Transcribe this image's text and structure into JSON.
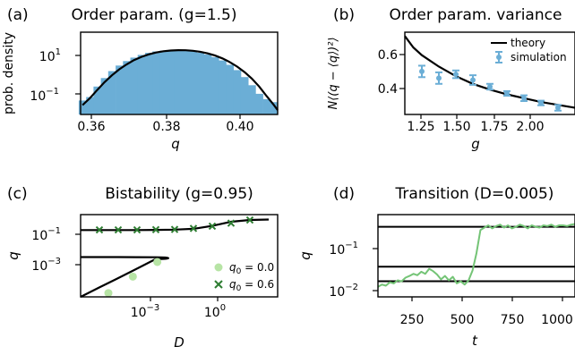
{
  "colors": {
    "hist": "#6baed6",
    "sim": "#6baed6",
    "theory": "#000000",
    "marker_q0_0": "#b7e4a5",
    "marker_q0_06": "#2e7d32",
    "trace": "#74c476"
  },
  "chart_data": [
    {
      "panel": "(a)",
      "type": "bar",
      "title": "Order param. (g=1.5)",
      "xlabel": "q",
      "ylabel": "prob. density",
      "yscale": "log",
      "xlim": [
        0.357,
        0.4105
      ],
      "ylim": [
        0.012,
        160
      ],
      "xticks": [
        "0.36",
        "0.38",
        "0.40"
      ],
      "yticks": [
        "10^1",
        "10^-1"
      ],
      "grid": false,
      "bins_x": [
        0.3575,
        0.3595,
        0.3615,
        0.3635,
        0.3655,
        0.3675,
        0.3695,
        0.3715,
        0.3735,
        0.3755,
        0.3775,
        0.3795,
        0.3815,
        0.3835,
        0.3855,
        0.3875,
        0.3895,
        0.3915,
        0.3935,
        0.3955,
        0.3975,
        0.3995,
        0.4015,
        0.4035,
        0.4055,
        0.4075,
        0.4095
      ],
      "bins_density": [
        0.06,
        0.09,
        0.3,
        0.8,
        1.8,
        3.4,
        5.7,
        8.5,
        11.6,
        14.7,
        17.3,
        19.1,
        20.1,
        20.2,
        19.4,
        17.6,
        15.1,
        12.1,
        9.0,
        6.1,
        3.7,
        2.0,
        0.9,
        0.35,
        0.13,
        0.07,
        0.05
      ],
      "theory_x": [
        0.3575,
        0.3595,
        0.3615,
        0.3635,
        0.3655,
        0.3675,
        0.3695,
        0.3715,
        0.3735,
        0.3755,
        0.3775,
        0.3795,
        0.3815,
        0.3835,
        0.3855,
        0.3875,
        0.3895,
        0.3915,
        0.3935,
        0.3955,
        0.3975,
        0.3995,
        0.4015,
        0.4035,
        0.4055,
        0.4075,
        0.4095,
        0.4105
      ],
      "theory_y": [
        0.035,
        0.078,
        0.2,
        0.5,
        1.1,
        2.2,
        3.9,
        6.4,
        9.3,
        12.4,
        15.3,
        17.7,
        19.3,
        20.0,
        19.8,
        18.7,
        16.7,
        13.9,
        10.8,
        7.8,
        5.1,
        3.0,
        1.6,
        0.75,
        0.3,
        0.1,
        0.035,
        0.02
      ]
    },
    {
      "panel": "(b)",
      "type": "line",
      "title": "Order param. variance",
      "xlabel": "g",
      "ylabel": "N⟨(q − ⟨q⟩)²⟩",
      "xlim": [
        1.1,
        2.1
      ],
      "ylim": [
        0.25,
        0.68
      ],
      "xticks": [
        "1.25",
        "1.50",
        "1.75",
        "2.00"
      ],
      "yticks": [
        "0.4",
        "0.6"
      ],
      "legend": "top-right",
      "grid": false,
      "series": [
        {
          "name": "theory",
          "x": [
            1.1,
            1.15,
            1.2,
            1.3,
            1.4,
            1.5,
            1.6,
            1.7,
            1.8,
            1.9,
            2.0,
            2.1
          ],
          "y": [
            0.66,
            0.6,
            0.56,
            0.5,
            0.45,
            0.41,
            0.38,
            0.355,
            0.335,
            0.315,
            0.3,
            0.285
          ]
        },
        {
          "name": "simulation",
          "x": [
            1.2,
            1.3,
            1.4,
            1.5,
            1.6,
            1.7,
            1.8,
            1.9,
            2.0
          ],
          "y": [
            0.475,
            0.44,
            0.46,
            0.43,
            0.395,
            0.36,
            0.335,
            0.31,
            0.285
          ],
          "err": [
            0.03,
            0.03,
            0.02,
            0.025,
            0.015,
            0.012,
            0.015,
            0.012,
            0.015
          ]
        }
      ]
    },
    {
      "panel": "(c)",
      "type": "line",
      "title": "Bistability (g=0.95)",
      "xlabel": "D",
      "ylabel": "q",
      "xscale": "log",
      "yscale": "log",
      "xlim": [
        1e-07,
        3000
      ],
      "ylim": [
        5e-05,
        1.2
      ],
      "xticks": [
        "10^-3",
        "10^0"
      ],
      "yticks": [
        "10^-1",
        "10^-3"
      ],
      "legend": "lower-right",
      "grid": false,
      "theory_x": [
        1e-07,
        1e-06,
        1e-05,
        0.0001,
        0.001,
        0.01,
        0.1,
        1,
        10,
        100,
        1000
      ],
      "theory_upper": [
        0.18,
        0.18,
        0.18,
        0.181,
        0.185,
        0.19,
        0.21,
        0.3,
        0.5,
        0.62,
        0.66
      ],
      "theory_middle": [
        0.0066,
        0.0066,
        0.0066,
        0.0065,
        0.0064
      ],
      "theory_lower": [
        5e-05,
        0.00016,
        0.0005,
        0.0016,
        0.0052
      ],
      "series": [
        {
          "name": "q_0 = 0.0",
          "x": [
            3e-06,
            6e-05,
            0.0012
          ],
          "y": [
            8e-05,
            0.0006,
            0.0036
          ]
        },
        {
          "name": "q_0 = 0.6",
          "x": [
            1e-06,
            1e-05,
            0.0001,
            0.001,
            0.01,
            0.1,
            1,
            10,
            100
          ],
          "y": [
            0.185,
            0.185,
            0.185,
            0.19,
            0.195,
            0.22,
            0.29,
            0.42,
            0.62
          ]
        }
      ]
    },
    {
      "panel": "(d)",
      "type": "line",
      "title": "Transition (D=0.005)",
      "xlabel": "t",
      "ylabel": "q",
      "yscale": "log",
      "xlim": [
        100,
        1100
      ],
      "ylim": [
        0.01,
        0.5
      ],
      "xticks": [
        "250",
        "500",
        "750",
        "1000"
      ],
      "yticks": [
        "10^-1",
        "10^-2"
      ],
      "grid": false,
      "hlines": [
        0.28,
        0.042,
        0.021
      ],
      "trace_t": [
        100,
        120,
        140,
        160,
        180,
        200,
        220,
        240,
        260,
        280,
        300,
        320,
        340,
        360,
        380,
        400,
        420,
        440,
        460,
        480,
        500,
        520,
        540,
        560,
        580,
        600,
        620,
        640,
        660,
        680,
        700,
        720,
        740,
        760,
        780,
        800,
        820,
        840,
        860,
        880,
        900,
        920,
        940,
        960,
        980,
        1000,
        1020,
        1040,
        1060,
        1080,
        1100
      ],
      "trace_q": [
        0.016,
        0.018,
        0.017,
        0.02,
        0.019,
        0.022,
        0.021,
        0.025,
        0.027,
        0.03,
        0.028,
        0.033,
        0.03,
        0.038,
        0.034,
        0.029,
        0.023,
        0.027,
        0.022,
        0.026,
        0.019,
        0.021,
        0.018,
        0.022,
        0.035,
        0.08,
        0.24,
        0.27,
        0.3,
        0.26,
        0.29,
        0.31,
        0.27,
        0.3,
        0.26,
        0.28,
        0.31,
        0.29,
        0.26,
        0.3,
        0.28,
        0.27,
        0.3,
        0.29,
        0.31,
        0.28,
        0.3,
        0.3,
        0.29,
        0.31,
        0.32
      ]
    }
  ],
  "labels": {
    "a": {
      "panel": "(a)",
      "title": "Order param. (g=1.5)",
      "xlabel": "q",
      "ylabel": "prob. density",
      "xtick_0": "0.36",
      "xtick_1": "0.38",
      "xtick_2": "0.40",
      "ytick_base": "10",
      "ytick_0_exp": "1",
      "ytick_1_exp": "−1"
    },
    "b": {
      "panel": "(b)",
      "title": "Order param. variance",
      "xlabel": "g",
      "ylabel": "N⟨(q − ⟨q⟩)²⟩",
      "xtick_0": "1.25",
      "xtick_1": "1.50",
      "xtick_2": "1.75",
      "xtick_3": "2.00",
      "ytick_0": "0.6",
      "ytick_1": "0.4",
      "legend_theory": "theory",
      "legend_sim": "simulation"
    },
    "c": {
      "panel": "(c)",
      "title": "Bistability (g=0.95)",
      "xlabel": "D",
      "ylabel": "q",
      "ytick_base": "10",
      "ytick_0_exp": "−1",
      "ytick_1_exp": "−3",
      "xtick_0_exp": "−3",
      "xtick_1_exp": "0",
      "legend_q0_0_sym": "q",
      "legend_q0_0_sub": "0",
      "legend_q0_0_val": " = 0.0",
      "legend_q0_6_sym": "q",
      "legend_q0_6_sub": "0",
      "legend_q0_6_val": " = 0.6"
    },
    "d": {
      "panel": "(d)",
      "title": "Transition (D=0.005)",
      "xlabel": "t",
      "ylabel": "q",
      "xtick_0": "250",
      "xtick_1": "500",
      "xtick_2": "750",
      "xtick_3": "1000",
      "ytick_base": "10",
      "ytick_0_exp": "−1",
      "ytick_1_exp": "−2"
    }
  }
}
